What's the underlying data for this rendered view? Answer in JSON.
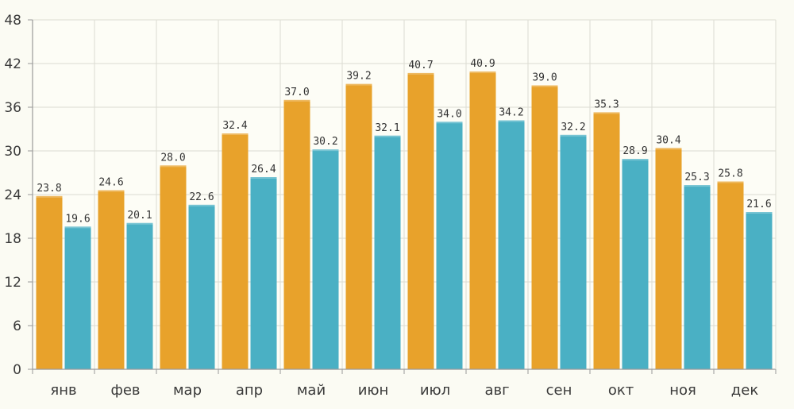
{
  "chart_data": {
    "type": "bar",
    "categories": [
      "янв",
      "фев",
      "мар",
      "апр",
      "май",
      "июн",
      "июл",
      "авг",
      "сен",
      "окт",
      "ноя",
      "дек"
    ],
    "series": [
      {
        "name": "series-1",
        "color": "#e8a22b",
        "values": [
          23.8,
          24.6,
          28.0,
          32.4,
          37.0,
          39.2,
          40.7,
          40.9,
          39.0,
          35.3,
          30.4,
          25.8
        ]
      },
      {
        "name": "series-2",
        "color": "#4ab0c4",
        "values": [
          19.6,
          20.1,
          22.6,
          26.4,
          30.2,
          32.1,
          34.0,
          34.2,
          32.2,
          28.9,
          25.3,
          21.6
        ]
      }
    ],
    "y_ticks": [
      0,
      6,
      12,
      18,
      24,
      30,
      36,
      42,
      48
    ],
    "ylim": [
      0,
      48
    ],
    "grid": true,
    "title": "",
    "xlabel": "",
    "ylabel": ""
  }
}
